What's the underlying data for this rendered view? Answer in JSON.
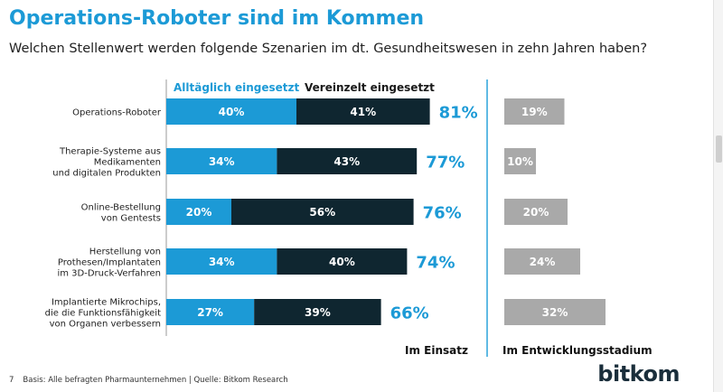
{
  "header": {
    "title": "Operations-Roboter sind im Kommen",
    "subtitle": "Welchen Stellenwert werden folgende Szenarien im dt. Gesundheitswesen in zehn Jahren haben?"
  },
  "footer": {
    "page_number": "7",
    "source": "Basis: Alle befragten Pharmaunternehmen | Quelle: Bitkom Research"
  },
  "logo": {
    "text": "bitkom"
  },
  "colors": {
    "title": "#1c9ad6",
    "alltaeglich": "#1c9ad6",
    "vereinzelt": "#0f2630",
    "total": "#1c9ad6",
    "entwicklung": "#a9a9a9",
    "legend_alltaeglich": "#1c9ad6",
    "legend_vereinzelt": "#1a1a1a"
  },
  "chart_data": {
    "type": "bar",
    "orientation": "horizontal",
    "stacked": true,
    "title": "Operations-Roboter sind im Kommen",
    "subtitle": "Welchen Stellenwert werden folgende Szenarien im dt. Gesundheitswesen in zehn Jahren haben?",
    "categories": [
      [
        "Operations-Roboter"
      ],
      [
        "Therapie-Systeme aus",
        "Medikamenten",
        "und digitalen Produkten"
      ],
      [
        "Online-Bestellung",
        "von Gentests"
      ],
      [
        "Herstellung von",
        "Prothesen/Implantaten",
        "im 3D-Druck-Verfahren"
      ],
      [
        "Implantierte Mikrochips,",
        "die die Funktionsfähigkeit",
        "von Organen verbessern"
      ]
    ],
    "series": [
      {
        "name": "Alltäglich eingesetzt",
        "values": [
          40,
          34,
          20,
          34,
          27
        ]
      },
      {
        "name": "Vereinzelt eingesetzt",
        "values": [
          41,
          43,
          56,
          40,
          39
        ]
      }
    ],
    "totals": [
      81,
      77,
      76,
      74,
      66
    ],
    "entwicklung": {
      "name": "Im Entwicklungsstadium",
      "values": [
        19,
        10,
        20,
        24,
        32
      ]
    },
    "group_labels": [
      "Im Einsatz",
      "Im Entwicklungsstadium"
    ],
    "unit": "%"
  }
}
